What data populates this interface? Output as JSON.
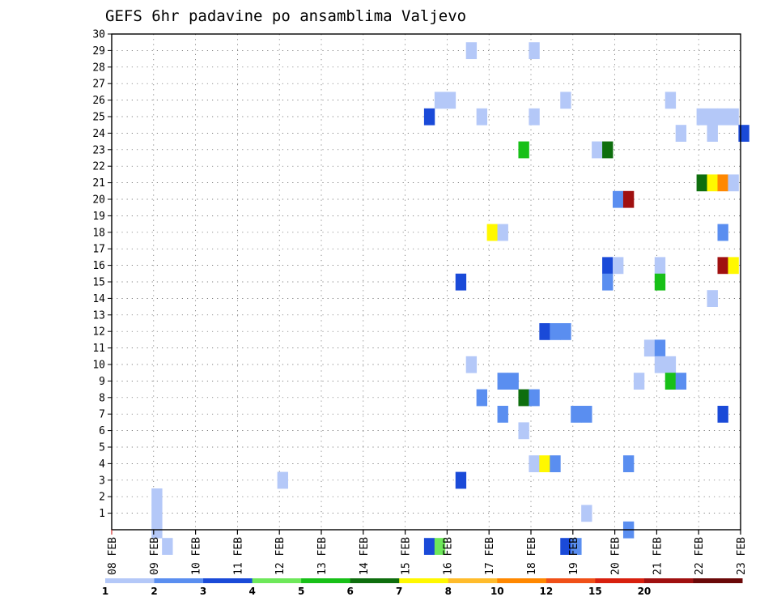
{
  "chart_data": {
    "type": "heatmap",
    "title": "GEFS 6hr padavine po ansamblima Valjevo",
    "x_tick_labels": [
      "08 FEB",
      "09 FEB",
      "10 FEB",
      "11 FEB",
      "12 FEB",
      "13 FEB",
      "14 FEB",
      "15 FEB",
      "16 FEB",
      "17 FEB",
      "18 FEB",
      "19 FEB",
      "20 FEB",
      "21 FEB",
      "22 FEB",
      "23 FEB"
    ],
    "y_tick_labels": [
      "1",
      "2",
      "3",
      "4",
      "5",
      "6",
      "7",
      "8",
      "9",
      "10",
      "11",
      "12",
      "13",
      "14",
      "15",
      "16",
      "17",
      "18",
      "19",
      "20",
      "21",
      "22",
      "23",
      "24",
      "25",
      "26",
      "27",
      "28",
      "29",
      "30"
    ],
    "xlim": [
      0,
      15
    ],
    "ylim": [
      0,
      30
    ],
    "grid": true,
    "legend_placement": "bottom",
    "legend": {
      "labels": [
        "1",
        "2",
        "3",
        "4",
        "5",
        "6",
        "7",
        "8",
        "10",
        "12",
        "15",
        "20"
      ],
      "colors": [
        "#b4c8f8",
        "#5a8ef0",
        "#1a4ad8",
        "#6ee85a",
        "#18c018",
        "#0e6e0e",
        "#fff800",
        "#ffbc2c",
        "#ff8800",
        "#f05018",
        "#d8200e",
        "#a01010",
        "#6a0808"
      ]
    },
    "cells": [
      {
        "x": 0.95,
        "y": 0,
        "c": 0
      },
      {
        "x": 0.95,
        "y": 1,
        "c": 0
      },
      {
        "x": 0.95,
        "y": 2,
        "c": 0
      },
      {
        "x": 1.2,
        "y": -1,
        "c": 0
      },
      {
        "x": 3.95,
        "y": 3,
        "c": 0
      },
      {
        "x": 7.45,
        "y": 25,
        "c": 2
      },
      {
        "x": 7.45,
        "y": -1,
        "c": 2
      },
      {
        "x": 7.7,
        "y": 26,
        "c": 0
      },
      {
        "x": 7.95,
        "y": 26,
        "c": 0
      },
      {
        "x": 7.7,
        "y": -1,
        "c": 3
      },
      {
        "x": 8.2,
        "y": 15,
        "c": 2
      },
      {
        "x": 8.2,
        "y": 3,
        "c": 2
      },
      {
        "x": 8.45,
        "y": 29,
        "c": 0
      },
      {
        "x": 8.45,
        "y": 10,
        "c": 0
      },
      {
        "x": 8.7,
        "y": 25,
        "c": 0
      },
      {
        "x": 8.7,
        "y": 8,
        "c": 1
      },
      {
        "x": 8.95,
        "y": 18,
        "c": 6
      },
      {
        "x": 9.2,
        "y": 18,
        "c": 0
      },
      {
        "x": 9.2,
        "y": 9,
        "c": 1
      },
      {
        "x": 9.45,
        "y": 9,
        "c": 1
      },
      {
        "x": 9.2,
        "y": 7,
        "c": 1
      },
      {
        "x": 9.7,
        "y": 23,
        "c": 4
      },
      {
        "x": 9.7,
        "y": 8,
        "c": 5
      },
      {
        "x": 9.7,
        "y": 6,
        "c": 0
      },
      {
        "x": 9.95,
        "y": 29,
        "c": 0
      },
      {
        "x": 9.95,
        "y": 25,
        "c": 0
      },
      {
        "x": 9.95,
        "y": 8,
        "c": 1
      },
      {
        "x": 9.95,
        "y": 4,
        "c": 0
      },
      {
        "x": 10.2,
        "y": 12,
        "c": 2
      },
      {
        "x": 10.2,
        "y": 4,
        "c": 6
      },
      {
        "x": 10.45,
        "y": 12,
        "c": 1
      },
      {
        "x": 10.7,
        "y": 12,
        "c": 1
      },
      {
        "x": 10.45,
        "y": 4,
        "c": 1
      },
      {
        "x": 10.7,
        "y": 26,
        "c": 0
      },
      {
        "x": 10.7,
        "y": -1,
        "c": 2
      },
      {
        "x": 10.95,
        "y": 7,
        "c": 1
      },
      {
        "x": 11.2,
        "y": 7,
        "c": 1
      },
      {
        "x": 10.95,
        "y": -1,
        "c": 1
      },
      {
        "x": 11.2,
        "y": 1,
        "c": 0
      },
      {
        "x": 11.45,
        "y": 23,
        "c": 0
      },
      {
        "x": 11.7,
        "y": 23,
        "c": 5
      },
      {
        "x": 11.7,
        "y": 16,
        "c": 2
      },
      {
        "x": 11.7,
        "y": 15,
        "c": 1
      },
      {
        "x": 11.95,
        "y": 16,
        "c": 0
      },
      {
        "x": 11.95,
        "y": 20,
        "c": 1
      },
      {
        "x": 12.2,
        "y": 20,
        "c": 11
      },
      {
        "x": 12.2,
        "y": 4,
        "c": 1
      },
      {
        "x": 12.2,
        "y": 0,
        "c": 1
      },
      {
        "x": 12.45,
        "y": 9,
        "c": 0
      },
      {
        "x": 12.7,
        "y": 11,
        "c": 0
      },
      {
        "x": 12.95,
        "y": 11,
        "c": 1
      },
      {
        "x": 12.95,
        "y": 10,
        "c": 0
      },
      {
        "x": 13.2,
        "y": 10,
        "c": 0
      },
      {
        "x": 12.95,
        "y": 16,
        "c": 0
      },
      {
        "x": 12.95,
        "y": 15,
        "c": 4
      },
      {
        "x": 13.2,
        "y": 9,
        "c": 4
      },
      {
        "x": 13.45,
        "y": 9,
        "c": 1
      },
      {
        "x": 13.2,
        "y": 26,
        "c": 0
      },
      {
        "x": 13.45,
        "y": 24,
        "c": 0
      },
      {
        "x": 13.95,
        "y": 25,
        "c": 0
      },
      {
        "x": 14.2,
        "y": 25,
        "c": 0
      },
      {
        "x": 14.45,
        "y": 25,
        "c": 0
      },
      {
        "x": 14.7,
        "y": 25,
        "c": 0
      },
      {
        "x": 14.2,
        "y": 24,
        "c": 0
      },
      {
        "x": 13.95,
        "y": 21,
        "c": 5
      },
      {
        "x": 14.2,
        "y": 21,
        "c": 6
      },
      {
        "x": 14.45,
        "y": 21,
        "c": 8
      },
      {
        "x": 14.7,
        "y": 21,
        "c": 0
      },
      {
        "x": 14.45,
        "y": 18,
        "c": 1
      },
      {
        "x": 14.45,
        "y": 16,
        "c": 11
      },
      {
        "x": 14.7,
        "y": 16,
        "c": 6
      },
      {
        "x": 14.2,
        "y": 14,
        "c": 0
      },
      {
        "x": 14.45,
        "y": 7,
        "c": 2
      },
      {
        "x": 14.95,
        "y": 24,
        "c": 2
      }
    ]
  }
}
